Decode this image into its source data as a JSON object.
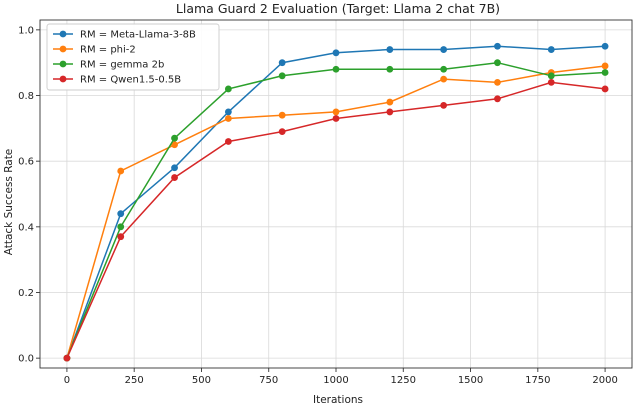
{
  "chart_data": {
    "type": "line",
    "title": "Llama Guard 2 Evaluation (Target: Llama 2 chat 7B)",
    "xlabel": "Iterations",
    "ylabel": "Attack Success Rate",
    "xlim": [
      -100,
      2100
    ],
    "ylim": [
      -0.03,
      1.03
    ],
    "xticks": [
      0,
      250,
      500,
      750,
      1000,
      1250,
      1500,
      1750,
      2000
    ],
    "yticks": [
      0.0,
      0.2,
      0.4,
      0.6,
      0.8,
      1.0
    ],
    "grid": true,
    "legend_position": "top-left",
    "x": [
      0,
      200,
      400,
      600,
      800,
      1000,
      1200,
      1400,
      1600,
      1800,
      2000
    ],
    "series": [
      {
        "name": "RM = Meta-Llama-3-8B",
        "color": "#1f77b4",
        "values": [
          0.0,
          0.44,
          0.58,
          0.75,
          0.9,
          0.93,
          0.94,
          0.94,
          0.95,
          0.94,
          0.95
        ]
      },
      {
        "name": "RM = phi-2",
        "color": "#ff7f0e",
        "values": [
          0.0,
          0.57,
          0.65,
          0.73,
          0.74,
          0.75,
          0.78,
          0.85,
          0.84,
          0.87,
          0.89
        ]
      },
      {
        "name": "RM = gemma 2b",
        "color": "#2ca02c",
        "values": [
          0.0,
          0.4,
          0.67,
          0.82,
          0.86,
          0.88,
          0.88,
          0.88,
          0.9,
          0.86,
          0.87
        ]
      },
      {
        "name": "RM = Qwen1.5-0.5B",
        "color": "#d62728",
        "values": [
          0.0,
          0.37,
          0.55,
          0.66,
          0.69,
          0.73,
          0.75,
          0.77,
          0.79,
          0.84,
          0.82
        ]
      }
    ]
  }
}
